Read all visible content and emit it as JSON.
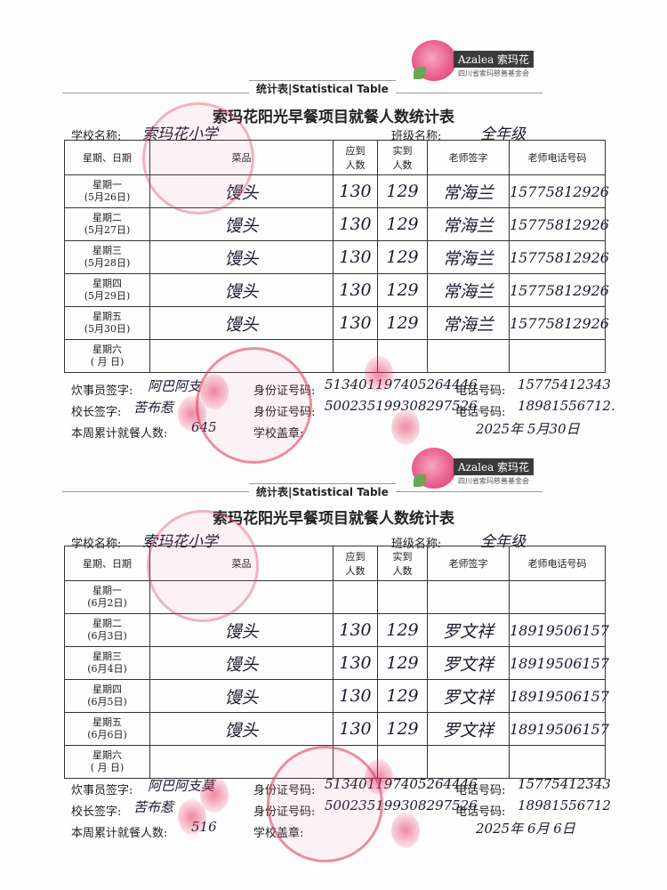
{
  "logo": {
    "brand": "Azalea 索玛花",
    "subtitle": "四川省索玛慈善基金会"
  },
  "banner": "统计表|Statistical Table",
  "title": "索玛花阳光早餐项目就餐人数统计表",
  "labels": {
    "school": "学校名称:",
    "class": "班级名称:",
    "cook": "炊事员签字:",
    "id": "身份证号码:",
    "phone": "电话号码:",
    "principal": "校长签字:",
    "total": "本周累计就餐人数:",
    "seal": "学校盖章:"
  },
  "headers": [
    "星期、日期",
    "菜品",
    "应到\n人数",
    "实到\n人数",
    "老师签字",
    "老师电话号码"
  ],
  "colors": {
    "stamp": "#dc3c5a",
    "ink": "#1a1a2e"
  },
  "sheets": [
    {
      "school": "索玛花小学",
      "class": "全年级",
      "rows": [
        {
          "weekday": "星期一",
          "date": "(5月26日)",
          "dish": "馒头",
          "expected": "130",
          "actual": "129",
          "teacher": "常海兰",
          "phone": "15775812926"
        },
        {
          "weekday": "星期二",
          "date": "(5月27日)",
          "dish": "馒头",
          "expected": "130",
          "actual": "129",
          "teacher": "常海兰",
          "phone": "15775812926"
        },
        {
          "weekday": "星期三",
          "date": "(5月28日)",
          "dish": "馒头",
          "expected": "130",
          "actual": "129",
          "teacher": "常海兰",
          "phone": "15775812926"
        },
        {
          "weekday": "星期四",
          "date": "(5月29日)",
          "dish": "馒头",
          "expected": "130",
          "actual": "129",
          "teacher": "常海兰",
          "phone": "15775812926"
        },
        {
          "weekday": "星期五",
          "date": "(5月30日)",
          "dish": "馒头",
          "expected": "130",
          "actual": "129",
          "teacher": "常海兰",
          "phone": "15775812926"
        },
        {
          "weekday": "星期六",
          "date": "(  月  日)",
          "dish": "",
          "expected": "",
          "actual": "",
          "teacher": "",
          "phone": ""
        }
      ],
      "cook": "阿巴阿支",
      "cook_id": "513401197405264446",
      "cook_phone": "15775412343",
      "principal": "苦布惹",
      "principal_id": "500235199308297526",
      "principal_phone": "18981556712.",
      "total": "645",
      "date": "2025年 5月30日"
    },
    {
      "school": "索玛花小学",
      "class": "全年级",
      "rows": [
        {
          "weekday": "星期一",
          "date": "(6月2日)",
          "dish": "",
          "expected": "",
          "actual": "",
          "teacher": "",
          "phone": ""
        },
        {
          "weekday": "星期二",
          "date": "(6月3日)",
          "dish": "馒头",
          "expected": "130",
          "actual": "129",
          "teacher": "罗文祥",
          "phone": "18919506157"
        },
        {
          "weekday": "星期三",
          "date": "(6月4日)",
          "dish": "馒头",
          "expected": "130",
          "actual": "129",
          "teacher": "罗文祥",
          "phone": "18919506157"
        },
        {
          "weekday": "星期四",
          "date": "(6月5日)",
          "dish": "馒头",
          "expected": "130",
          "actual": "129",
          "teacher": "罗文祥",
          "phone": "18919506157"
        },
        {
          "weekday": "星期五",
          "date": "(6月6日)",
          "dish": "馒头",
          "expected": "130",
          "actual": "129",
          "teacher": "罗文祥",
          "phone": "18919506157"
        },
        {
          "weekday": "星期六",
          "date": "(  月  日)",
          "dish": "",
          "expected": "",
          "actual": "",
          "teacher": "",
          "phone": ""
        }
      ],
      "cook": "阿巴阿支莫",
      "cook_id": "513401197405264446",
      "cook_phone": "15775412343",
      "principal": "苦布惹",
      "principal_id": "500235199308297526",
      "principal_phone": "18981556712",
      "total": "516",
      "date": "2025年 6月 6日"
    }
  ]
}
